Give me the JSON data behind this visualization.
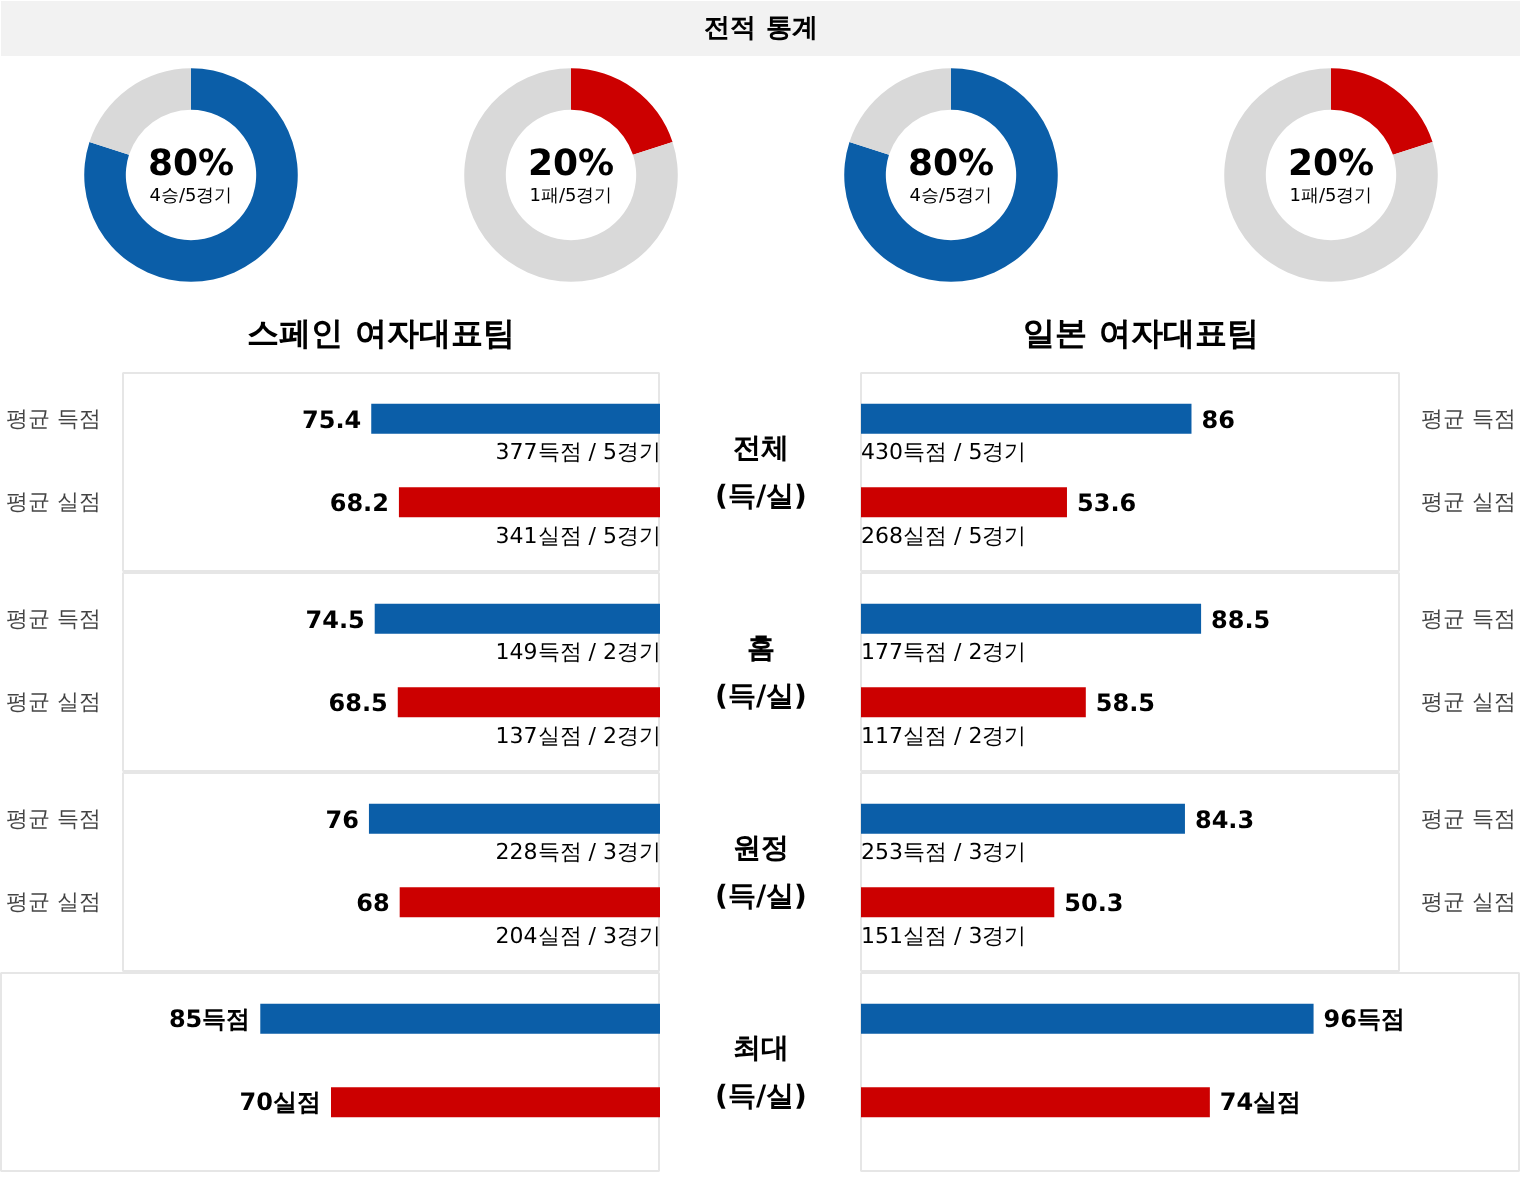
{
  "chart_data": [
    {
      "type": "other",
      "title": "전적 통계"
    },
    {
      "type": "donut",
      "categories": [
        null,
        null
      ],
      "values": [
        80,
        20
      ],
      "colors": [
        "#0b5ea8",
        "#d9d9d9"
      ],
      "annotations": [
        "80%",
        "4승/5경기"
      ]
    },
    {
      "type": "donut",
      "categories": [
        null,
        null
      ],
      "values": [
        20,
        80
      ],
      "colors": [
        "#cc0000",
        "#d9d9d9"
      ],
      "annotations": [
        "20%",
        "1패/5경기"
      ]
    },
    {
      "type": "donut",
      "categories": [
        null,
        null
      ],
      "values": [
        80,
        20
      ],
      "colors": [
        "#0b5ea8",
        "#d9d9d9"
      ],
      "annotations": [
        "80%",
        "4승/5경기"
      ]
    },
    {
      "type": "donut",
      "categories": [
        null,
        null
      ],
      "values": [
        20,
        80
      ],
      "colors": [
        "#cc0000",
        "#d9d9d9"
      ],
      "annotations": [
        "20%",
        "1패/5경기"
      ]
    },
    {
      "type": "other",
      "title": "스페인 여자대표팀"
    },
    {
      "type": "other",
      "title": "일본 여자대표팀"
    },
    {
      "type": "bar",
      "orientation": "horizontal",
      "categories": [
        "평균 득점",
        "평균 실점"
      ],
      "values": [
        75.4,
        68.2
      ],
      "colors": [
        "#0b5ea8",
        "#cc0000"
      ],
      "xlim": [
        140,
        0
      ],
      "tick_labels": "y",
      "data_labels": true,
      "annotations": [
        "377득점 / 5경기",
        "341실점 / 5경기"
      ]
    },
    {
      "type": "other",
      "title": "전체",
      "subtitle": "(득/실)"
    },
    {
      "type": "bar",
      "orientation": "horizontal",
      "categories": [
        "평균 득점",
        "평균 실점"
      ],
      "values": [
        86,
        53.6
      ],
      "colors": [
        "#0b5ea8",
        "#cc0000"
      ],
      "xlim": [
        0,
        140
      ],
      "tick_labels": "y",
      "data_labels": true,
      "annotations": [
        "430득점 / 5경기",
        "268실점 / 5경기"
      ]
    },
    {
      "type": "bar",
      "orientation": "horizontal",
      "categories": [
        "평균 득점",
        "평균 실점"
      ],
      "values": [
        74.5,
        68.5
      ],
      "colors": [
        "#0b5ea8",
        "#cc0000"
      ],
      "xlim": [
        140,
        0
      ],
      "tick_labels": "y",
      "data_labels": true,
      "annotations": [
        "149득점 / 2경기",
        "137실점 / 2경기"
      ]
    },
    {
      "type": "other",
      "title": "홈",
      "subtitle": "(득/실)"
    },
    {
      "type": "bar",
      "orientation": "horizontal",
      "categories": [
        "평균 득점",
        "평균 실점"
      ],
      "values": [
        88.5,
        58.5
      ],
      "colors": [
        "#0b5ea8",
        "#cc0000"
      ],
      "xlim": [
        0,
        140
      ],
      "tick_labels": "y",
      "data_labels": true,
      "annotations": [
        "177득점 / 2경기",
        "117실점 / 2경기"
      ]
    },
    {
      "type": "bar",
      "orientation": "horizontal",
      "categories": [
        "평균 득점",
        "평균 실점"
      ],
      "values": [
        76,
        68
      ],
      "colors": [
        "#0b5ea8",
        "#cc0000"
      ],
      "xlim": [
        140,
        0
      ],
      "tick_labels": "y",
      "data_labels": true,
      "annotations": [
        "228득점 / 3경기",
        "204실점 / 3경기"
      ]
    },
    {
      "type": "other",
      "title": "원정",
      "subtitle": "(득/실)"
    },
    {
      "type": "bar",
      "orientation": "horizontal",
      "categories": [
        "평균 득점",
        "평균 실점"
      ],
      "values": [
        84.3,
        50.3
      ],
      "colors": [
        "#0b5ea8",
        "#cc0000"
      ],
      "xlim": [
        0,
        140
      ],
      "tick_labels": "y",
      "data_labels": true,
      "annotations": [
        "253득점 / 3경기",
        "151실점 / 3경기"
      ]
    },
    {
      "type": "bar",
      "orientation": "horizontal",
      "categories": [
        null,
        null
      ],
      "values": [
        85,
        70
      ],
      "colors": [
        "#0b5ea8",
        "#cc0000"
      ],
      "xlim": [
        140,
        0
      ],
      "tick_labels": false,
      "value_labels": [
        "85득점",
        "70실점"
      ]
    },
    {
      "type": "other",
      "title": "최대",
      "subtitle": "(득/실)"
    },
    {
      "type": "bar",
      "orientation": "horizontal",
      "categories": [
        null,
        null
      ],
      "values": [
        96,
        74
      ],
      "colors": [
        "#0b5ea8",
        "#cc0000"
      ],
      "xlim": [
        0,
        140
      ],
      "tick_labels": false,
      "value_labels": [
        "96득점",
        "74실점"
      ]
    }
  ]
}
